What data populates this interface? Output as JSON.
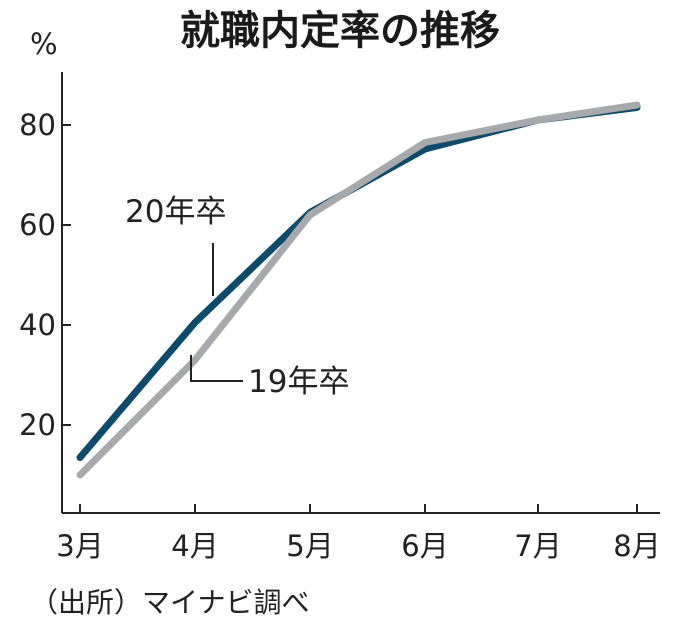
{
  "chart_data": {
    "type": "line",
    "title": "就職内定率の推移",
    "ylabel": "%",
    "categories": [
      "3月",
      "4月",
      "5月",
      "6月",
      "7月",
      "8月"
    ],
    "yticks": [
      20,
      40,
      60,
      80
    ],
    "ylim": [
      0,
      88
    ],
    "series": [
      {
        "name": "20年卒",
        "values": [
          13.5,
          40.5,
          62.5,
          75.2,
          81.0,
          83.5
        ],
        "color": "#0e4a6a"
      },
      {
        "name": "19年卒",
        "values": [
          10.0,
          33.0,
          62.0,
          76.5,
          81.0,
          84.0
        ],
        "color": "#a8a9ad"
      }
    ],
    "grid": false,
    "source": "（出所）マイナビ調べ"
  }
}
